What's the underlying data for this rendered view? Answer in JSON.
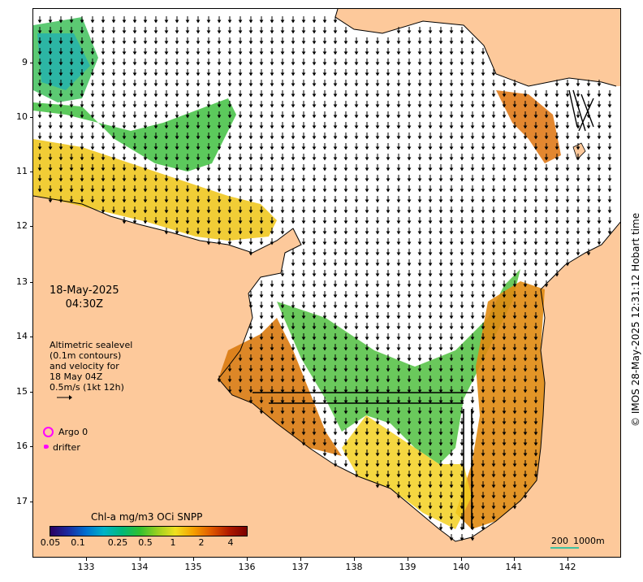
{
  "map": {
    "date": "18-May-2025",
    "time": "04:30Z",
    "lat_ticks": [
      "9",
      "10",
      "11",
      "12",
      "13",
      "14",
      "15",
      "16",
      "17"
    ],
    "lon_ticks": [
      "133",
      "134",
      "135",
      "136",
      "137",
      "138",
      "139",
      "140",
      "141",
      "142"
    ],
    "lat_range": [
      -17.8,
      -8.0
    ],
    "lon_range": [
      132.0,
      143.0
    ],
    "land_color": "#fdc99b",
    "ocean_color": "#ffffff"
  },
  "legend": {
    "line1": "Altimetric sealevel",
    "line2": "(0.1m contours)",
    "line3": "and velocity for",
    "line4": "18 May 04Z",
    "line5": "0.5m/s (1kt 12h)",
    "argo_label": "Argo 0",
    "drifter_label": "drifter",
    "argo_color": "#ff00ff"
  },
  "colorbar": {
    "title": "Chl-a mg/m3 OCi SNPP",
    "ticks": [
      "0.05",
      "0.1",
      "0.25",
      "0.5",
      "1",
      "2",
      "4"
    ]
  },
  "scale": {
    "label1": "200",
    "label2": "1000m"
  },
  "copyright": "© IMOS 28-May-2025 12:31:12 Hobart time"
}
